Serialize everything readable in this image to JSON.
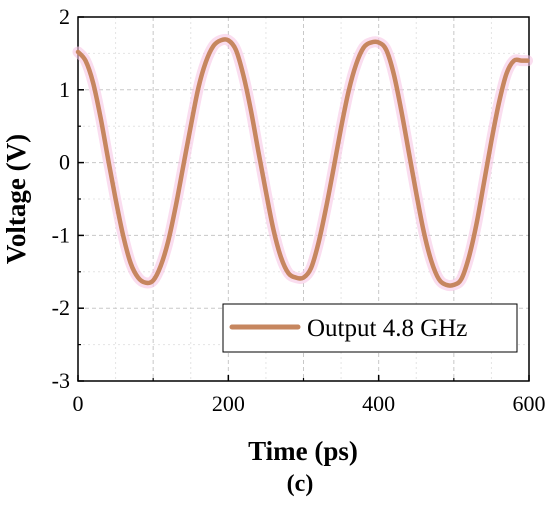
{
  "chart_data": {
    "type": "line",
    "xlabel": "Time (ps)",
    "ylabel": "Voltage (V)",
    "caption": "(c)",
    "xlim": [
      0,
      600
    ],
    "ylim": [
      -3,
      2
    ],
    "x_ticks": [
      0,
      200,
      400,
      600
    ],
    "y_ticks": [
      -3,
      -2,
      -1,
      0,
      1,
      2
    ],
    "grid": "on (dashed, major and minor)",
    "legend_position": "bottom-right",
    "series": [
      {
        "name": "Output 4.8 GHz",
        "color": "#c6865f",
        "x": [
          0,
          10,
          20,
          30,
          40,
          50,
          60,
          70,
          80,
          90,
          100,
          110,
          120,
          130,
          140,
          150,
          160,
          170,
          180,
          190,
          200,
          210,
          220,
          230,
          240,
          250,
          260,
          270,
          280,
          290,
          300,
          310,
          320,
          330,
          340,
          350,
          360,
          370,
          380,
          390,
          400,
          410,
          420,
          430,
          440,
          450,
          460,
          470,
          480,
          490,
          500,
          510,
          520,
          530,
          540,
          550,
          560,
          570,
          580,
          590,
          598
        ],
        "y": [
          1.52,
          1.4,
          1.1,
          0.62,
          0.05,
          -0.5,
          -1.0,
          -1.38,
          -1.58,
          -1.65,
          -1.62,
          -1.42,
          -1.08,
          -0.6,
          -0.05,
          0.5,
          1.02,
          1.38,
          1.6,
          1.68,
          1.68,
          1.55,
          1.2,
          0.72,
          0.15,
          -0.4,
          -0.92,
          -1.3,
          -1.52,
          -1.58,
          -1.58,
          -1.45,
          -1.1,
          -0.62,
          -0.08,
          0.48,
          0.98,
          1.35,
          1.58,
          1.65,
          1.65,
          1.55,
          1.22,
          0.72,
          0.15,
          -0.42,
          -0.95,
          -1.35,
          -1.6,
          -1.68,
          -1.68,
          -1.6,
          -1.3,
          -0.85,
          -0.28,
          0.3,
          0.82,
          1.22,
          1.4,
          1.4,
          1.4
        ]
      }
    ]
  }
}
